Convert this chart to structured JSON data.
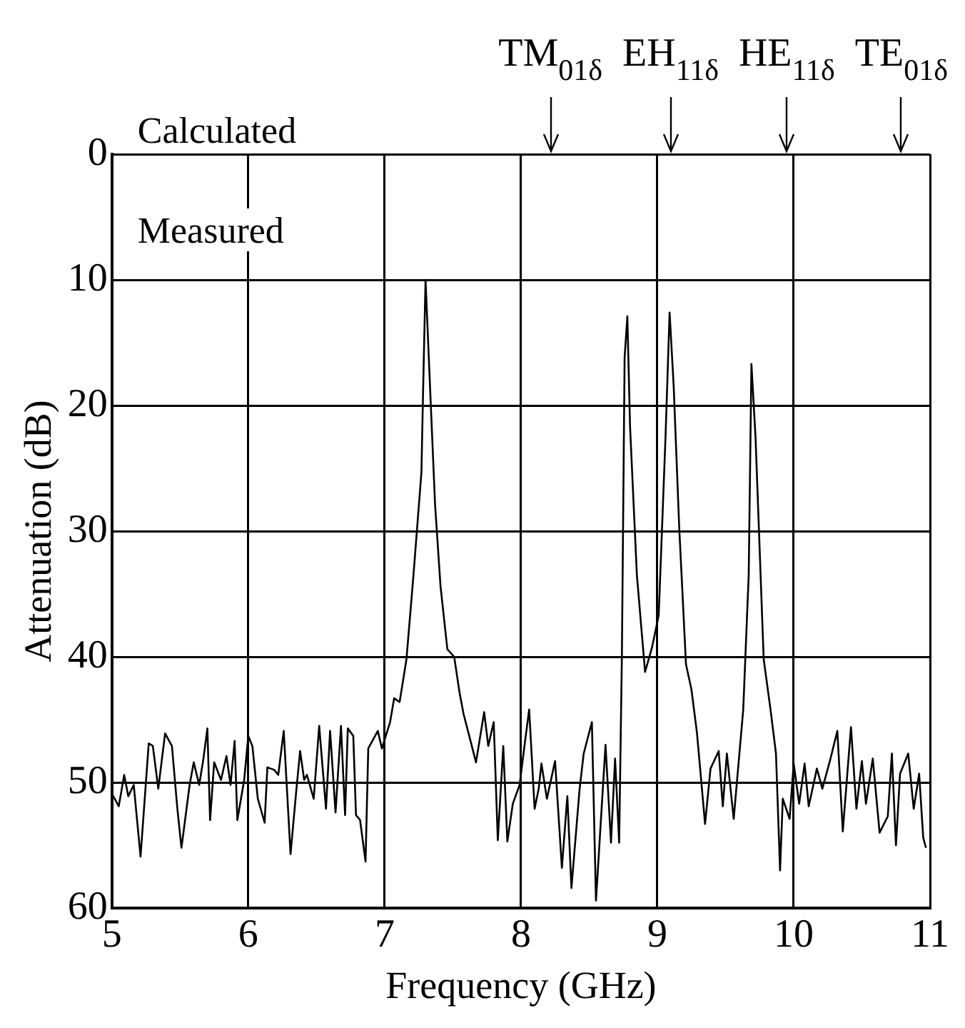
{
  "chart_data": {
    "type": "line",
    "xlabel": "Frequency (GHz)",
    "ylabel": "Attenuation (dB)",
    "xlim": [
      5,
      11
    ],
    "xticks": [
      5,
      6,
      7,
      8,
      9,
      10,
      11
    ],
    "ylim": [
      60,
      0
    ],
    "yticks": [
      0,
      10,
      20,
      30,
      40,
      50,
      60
    ],
    "grid": true,
    "marker": "none",
    "line_style": "solid",
    "annotations": [
      "Calculated",
      "Measured",
      "TM$_{01δ}$",
      "EH$_{11δ}$",
      "HE$_{11δ}$",
      "TE$_{01δ}$"
    ],
    "series": [
      {
        "color": "#000000",
        "x": [
          5.0,
          5.05,
          5.09,
          5.12,
          5.16,
          5.21,
          5.27,
          5.3,
          5.34,
          5.39,
          5.44,
          5.48,
          5.51,
          5.57,
          5.6,
          5.64,
          5.67,
          5.7,
          5.72,
          5.75,
          5.8,
          5.84,
          5.87,
          5.9,
          5.92,
          5.97,
          6.0,
          6.03,
          6.07,
          6.12,
          6.14,
          6.19,
          6.22,
          6.26,
          6.31,
          6.35,
          6.38,
          6.41,
          6.43,
          6.48,
          6.52,
          6.57,
          6.6,
          6.64,
          6.68,
          6.71,
          6.73,
          6.77,
          6.79,
          6.82,
          6.86,
          6.88,
          6.91,
          6.95,
          6.98,
          7.04,
          7.07,
          7.11,
          7.16,
          7.21,
          7.27,
          7.28,
          7.3,
          7.34,
          7.37,
          7.41,
          7.46,
          7.51,
          7.55,
          7.58,
          7.63,
          7.67,
          7.73,
          7.76,
          7.8,
          7.83,
          7.87,
          7.9,
          7.94,
          7.99,
          8.03,
          8.06,
          8.1,
          8.13,
          8.15,
          8.19,
          8.25,
          8.3,
          8.34,
          8.37,
          8.43,
          8.46,
          8.52,
          8.55,
          8.62,
          8.66,
          8.69,
          8.72,
          8.74,
          8.76,
          8.78,
          8.8,
          8.85,
          8.91,
          8.96,
          9.01,
          9.06,
          9.09,
          9.12,
          9.16,
          9.21,
          9.25,
          9.29,
          9.35,
          9.39,
          9.45,
          9.48,
          9.51,
          9.56,
          9.63,
          9.67,
          9.69,
          9.72,
          9.78,
          9.83,
          9.87,
          9.9,
          9.92,
          9.97,
          10.0,
          10.04,
          10.08,
          10.11,
          10.17,
          10.21,
          10.27,
          10.32,
          10.36,
          10.42,
          10.46,
          10.5,
          10.53,
          10.58,
          10.63,
          10.69,
          10.72,
          10.75,
          10.78,
          10.84,
          10.88,
          10.92,
          10.95,
          10.97
        ],
        "values": [
          50.9,
          51.9,
          49.4,
          51.1,
          50.2,
          55.9,
          46.9,
          47.1,
          50.5,
          46.1,
          47.1,
          52.1,
          55.2,
          50.2,
          48.4,
          50.2,
          48.2,
          45.7,
          53.0,
          48.4,
          49.8,
          47.9,
          50.2,
          46.7,
          53.0,
          49.8,
          46.3,
          47.1,
          51.3,
          53.2,
          48.8,
          49.0,
          49.4,
          45.9,
          55.7,
          50.9,
          47.5,
          49.8,
          49.4,
          51.3,
          45.5,
          52.1,
          45.9,
          52.4,
          45.5,
          52.6,
          45.7,
          46.3,
          52.6,
          53.0,
          56.3,
          47.3,
          46.7,
          45.9,
          47.3,
          45.2,
          43.3,
          43.6,
          40.2,
          33.7,
          25.3,
          19.9,
          10.0,
          20.3,
          27.9,
          34.4,
          39.4,
          40.0,
          42.9,
          44.6,
          46.7,
          48.4,
          44.4,
          47.1,
          45.2,
          54.6,
          47.1,
          54.7,
          51.7,
          50.2,
          46.7,
          44.2,
          52.1,
          50.5,
          48.5,
          51.3,
          48.3,
          56.8,
          51.1,
          58.4,
          50.5,
          47.7,
          45.2,
          59.4,
          47.0,
          54.8,
          48.1,
          54.8,
          39.9,
          16.2,
          12.9,
          21.7,
          33.5,
          41.2,
          39.3,
          36.7,
          22.5,
          12.6,
          18.5,
          29.6,
          40.6,
          42.6,
          46.0,
          53.3,
          48.9,
          47.5,
          51.9,
          47.7,
          52.9,
          44.2,
          33.5,
          16.7,
          22.5,
          40.2,
          44.2,
          47.7,
          57.0,
          51.3,
          52.9,
          48.5,
          51.7,
          48.5,
          51.9,
          48.9,
          50.5,
          48.1,
          45.9,
          53.9,
          45.6,
          52.1,
          48.3,
          51.7,
          48.1,
          54.0,
          52.7,
          47.7,
          55.0,
          49.3,
          47.7,
          52.1,
          49.3,
          54.4,
          55.2
        ]
      }
    ]
  }
}
